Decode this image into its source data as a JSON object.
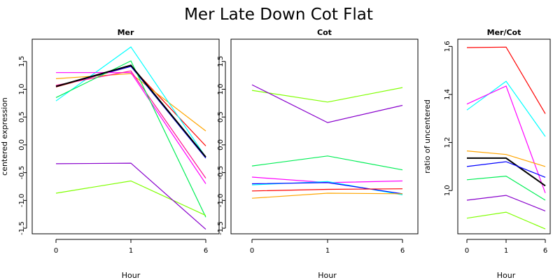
{
  "title": "Mer Late Down Cot Flat",
  "chart_data": [
    {
      "type": "line",
      "title": "Mer",
      "xlabel": "Hour",
      "ylabel": "centered expression",
      "x": [
        0,
        1,
        6
      ],
      "x_ticks": [
        "0",
        "1",
        "6"
      ],
      "y_ticks": [
        "-1.5",
        "-1.0",
        "-0.5",
        "0.0",
        "0.5",
        "1.0",
        "1.5"
      ],
      "ylim": [
        -1.6,
        1.9
      ],
      "series": [
        {
          "color": "#ff0000",
          "values": [
            1.04,
            1.41,
            -0.02
          ]
        },
        {
          "color": "#ffa500",
          "values": [
            1.19,
            1.28,
            0.25
          ]
        },
        {
          "color": "#00ffff",
          "values": [
            0.79,
            1.76,
            -0.22
          ]
        },
        {
          "color": "#0000ff",
          "values": [
            1.05,
            1.41,
            -0.24
          ]
        },
        {
          "color": "#ff00ff",
          "values": [
            1.3,
            1.3,
            -0.7
          ]
        },
        {
          "color": "#ff1493",
          "values": [
            1.07,
            1.33,
            -0.6
          ]
        },
        {
          "color": "#00ee55",
          "values": [
            0.85,
            1.51,
            -1.3
          ]
        },
        {
          "color": "#7fff00",
          "values": [
            -0.87,
            -0.65,
            -1.27
          ]
        },
        {
          "color": "#8800cc",
          "values": [
            -0.34,
            -0.33,
            -1.52
          ]
        },
        {
          "color": "#000000",
          "values": [
            1.05,
            1.43,
            -0.22
          ]
        }
      ]
    },
    {
      "type": "line",
      "title": "Cot",
      "xlabel": "Hour",
      "x": [
        0,
        1,
        6
      ],
      "x_ticks": [
        "0",
        "1",
        "6"
      ],
      "y_ticks": [
        "-1.5",
        "-1.0",
        "-0.5",
        "0.0",
        "0.5",
        "1.0",
        "1.5"
      ],
      "ylim": [
        -1.6,
        1.9
      ],
      "series": [
        {
          "color": "#7fff00",
          "values": [
            0.98,
            0.77,
            1.03
          ]
        },
        {
          "color": "#8800cc",
          "values": [
            1.08,
            0.4,
            0.71
          ]
        },
        {
          "color": "#00ee55",
          "values": [
            -0.38,
            -0.2,
            -0.45
          ]
        },
        {
          "color": "#ff00ff",
          "values": [
            -0.58,
            -0.68,
            -0.65
          ]
        },
        {
          "color": "#00ffff",
          "values": [
            -0.72,
            -0.66,
            -0.9
          ]
        },
        {
          "color": "#0000ff",
          "values": [
            -0.7,
            -0.68,
            -0.88
          ]
        },
        {
          "color": "#ff0000",
          "values": [
            -0.83,
            -0.8,
            -0.79
          ]
        },
        {
          "color": "#ffa500",
          "values": [
            -0.96,
            -0.87,
            -0.88
          ]
        }
      ]
    },
    {
      "type": "line",
      "title": "Mer/Cot",
      "xlabel": "Hour",
      "ylabel": "ratio of uncentered",
      "x": [
        0,
        1,
        6
      ],
      "x_ticks": [
        "0",
        "1",
        "6"
      ],
      "y_ticks": [
        "1.0",
        "1.2",
        "1.4",
        "1.6"
      ],
      "ylim": [
        0.82,
        1.63
      ],
      "series": [
        {
          "color": "#ff0000",
          "values": [
            1.595,
            1.597,
            1.32
          ]
        },
        {
          "color": "#00ffff",
          "values": [
            1.335,
            1.455,
            1.225
          ]
        },
        {
          "color": "#ff00ff",
          "values": [
            1.36,
            1.435,
            0.99
          ]
        },
        {
          "color": "#ffa500",
          "values": [
            1.165,
            1.15,
            1.1
          ]
        },
        {
          "color": "#000000",
          "values": [
            1.135,
            1.135,
            1.02
          ]
        },
        {
          "color": "#0000ff",
          "values": [
            1.1,
            1.12,
            1.055
          ]
        },
        {
          "color": "#00ee55",
          "values": [
            1.045,
            1.06,
            0.96
          ]
        },
        {
          "color": "#8800cc",
          "values": [
            0.96,
            0.98,
            0.915
          ]
        },
        {
          "color": "#7fff00",
          "values": [
            0.885,
            0.91,
            0.84
          ]
        }
      ]
    }
  ]
}
